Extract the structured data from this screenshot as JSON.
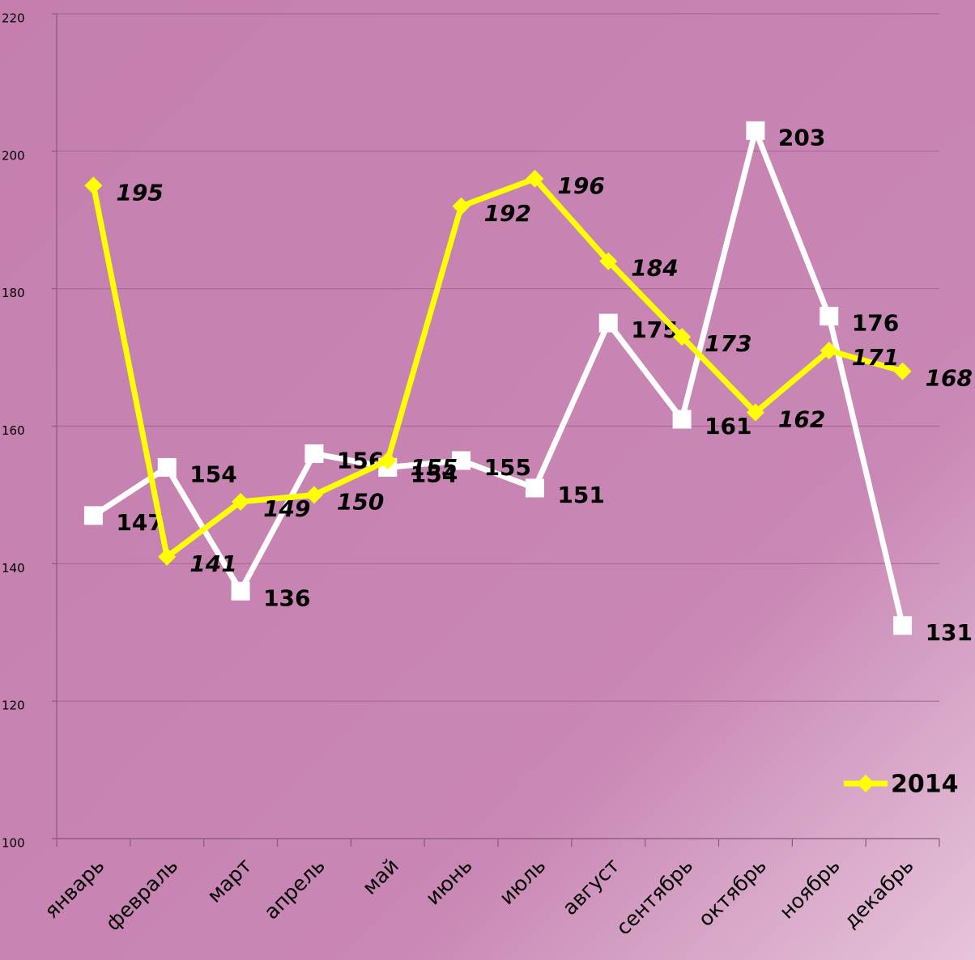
{
  "chart_data": {
    "type": "line",
    "categories": [
      "январь",
      "февраль",
      "март",
      "апрель",
      "май",
      "июнь",
      "июль",
      "август",
      "сентябрь",
      "октябрь",
      "ноябрь",
      "декабрь"
    ],
    "series": [
      {
        "name": "2014",
        "color": "#ffff00",
        "marker": "diamond",
        "values": [
          195,
          141,
          149,
          150,
          155,
          192,
          196,
          184,
          173,
          162,
          171,
          168
        ]
      },
      {
        "color": "#ffffff",
        "marker": "square",
        "values": [
          147,
          154,
          136,
          156,
          154,
          155,
          151,
          175,
          161,
          203,
          176,
          131
        ]
      }
    ],
    "ylim": [
      100,
      220
    ],
    "yticks": [
      100,
      120,
      140,
      160,
      180,
      200,
      220
    ],
    "grid": true,
    "legend": "lower right"
  }
}
